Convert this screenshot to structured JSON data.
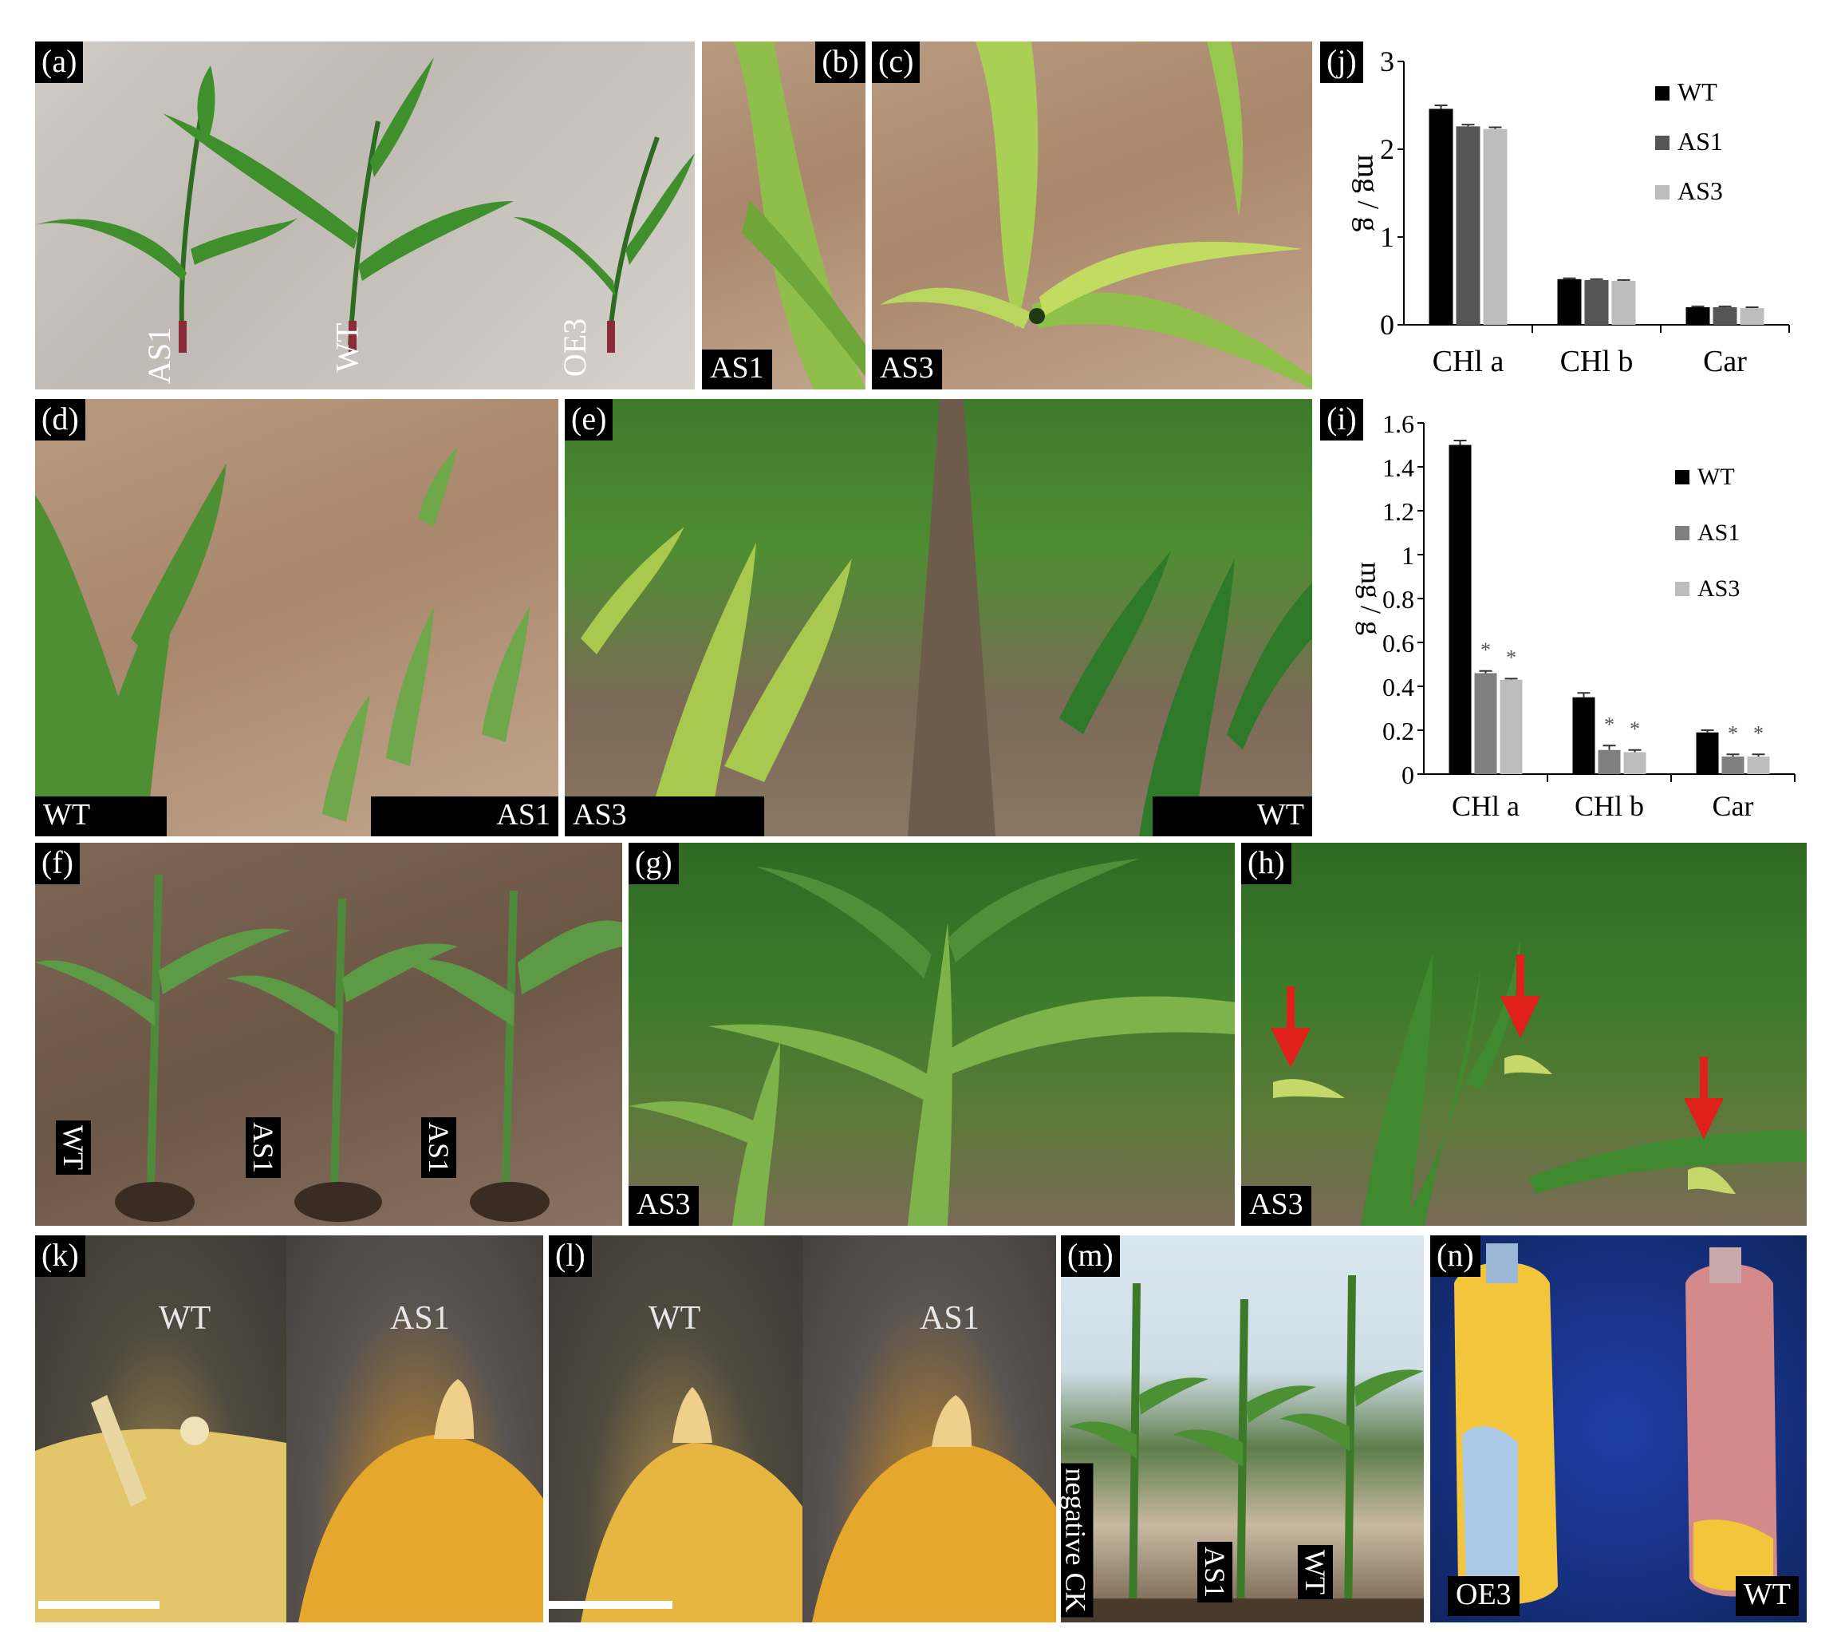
{
  "panels": {
    "a": {
      "letter": "(a)",
      "labels": [
        "AS1",
        "WT",
        "OE3"
      ]
    },
    "b": {
      "letter": "(b)",
      "tag": "AS1"
    },
    "c": {
      "letter": "(c)",
      "tag": "AS3"
    },
    "d": {
      "letter": "(d)",
      "tag_left": "WT",
      "tag_right": "AS1"
    },
    "e": {
      "letter": "(e)",
      "tag_left": "AS3",
      "tag_right": "WT"
    },
    "f": {
      "letter": "(f)",
      "labels": [
        "WT",
        "AS1",
        "AS1"
      ]
    },
    "g": {
      "letter": "(g)",
      "tag": "AS3"
    },
    "h": {
      "letter": "(h)",
      "tag": "AS3"
    },
    "k": {
      "letter": "(k)",
      "left_label": "WT",
      "right_label": "AS1"
    },
    "l": {
      "letter": "(l)",
      "left_label": "WT",
      "right_label": "AS1"
    },
    "m": {
      "letter": "(m)",
      "labels": [
        "negative CK",
        "AS1",
        "WT"
      ]
    },
    "n": {
      "letter": "(n)",
      "tag_left": "OE3",
      "tag_right": "WT"
    }
  },
  "colors": {
    "WT": "#000000",
    "AS1": "#555555",
    "AS3": "#bdbdbd",
    "AS1_i": "#7f7f7f",
    "arrow": "#e0201b"
  },
  "chart_data": [
    {
      "panel": "(j)",
      "type": "bar",
      "categories": [
        "CHl a",
        "CHl b",
        "Car"
      ],
      "series": [
        {
          "name": "WT",
          "values": [
            2.46,
            0.52,
            0.2
          ]
        },
        {
          "name": "AS1",
          "values": [
            2.26,
            0.51,
            0.2
          ]
        },
        {
          "name": "AS3",
          "values": [
            2.23,
            0.5,
            0.19
          ]
        }
      ],
      "errors": [
        [
          0.04,
          0.01,
          0.01
        ],
        [
          0.02,
          0.01,
          0.01
        ],
        [
          0.02,
          0.01,
          0.01
        ]
      ],
      "ylabel": "mg / g",
      "ylim": [
        0,
        3
      ],
      "yticks": [
        "0",
        "1",
        "2",
        "3"
      ],
      "legend": "top-right"
    },
    {
      "panel": "(i)",
      "type": "bar",
      "categories": [
        "CHl a",
        "CHl b",
        "Car"
      ],
      "series": [
        {
          "name": "WT",
          "values": [
            1.5,
            0.35,
            0.19
          ]
        },
        {
          "name": "AS1",
          "values": [
            0.46,
            0.11,
            0.08
          ]
        },
        {
          "name": "AS3",
          "values": [
            0.43,
            0.1,
            0.08
          ]
        }
      ],
      "errors": [
        [
          0.02,
          0.02,
          0.01
        ],
        [
          0.01,
          0.02,
          0.01
        ],
        [
          0.005,
          0.01,
          0.01
        ]
      ],
      "significance": "*",
      "ylabel": "mg / g",
      "ylim": [
        0,
        1.6
      ],
      "yticks": [
        "0",
        "0.2",
        "0.4",
        "0.6",
        "0.8",
        "1",
        "1.2",
        "1.4",
        "1.6"
      ],
      "legend": "top-right"
    }
  ]
}
